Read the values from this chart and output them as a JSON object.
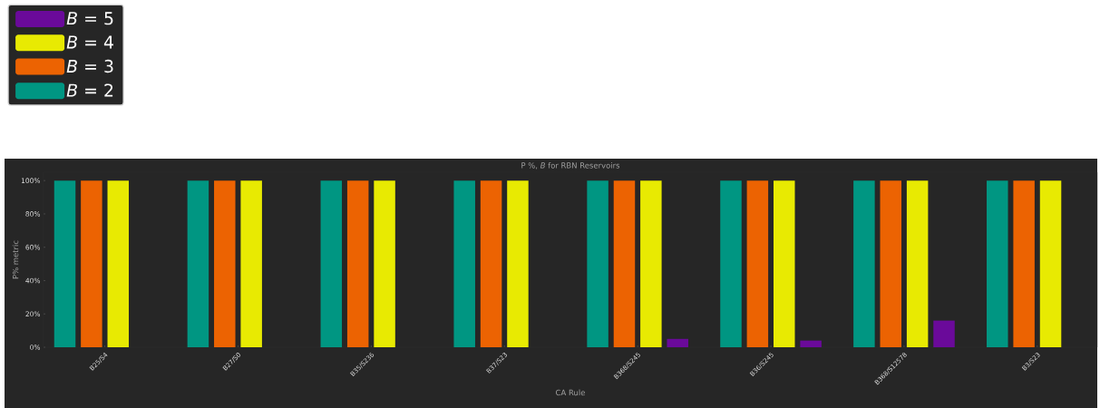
{
  "chart_data": {
    "type": "bar",
    "title": "P %, *B* for RBN Reservoirs",
    "xlabel": "CA Rule",
    "ylabel": "P% metric",
    "categories": [
      "B25/S4",
      "B27/S0",
      "B35/S236",
      "B37/S23",
      "B368/S245",
      "B36/S245",
      "B368/S12578",
      "B3/S23"
    ],
    "series": [
      {
        "name": "*B* = 2",
        "color": "#009682",
        "values": [
          100,
          100,
          100,
          100,
          100,
          100,
          100,
          100
        ]
      },
      {
        "name": "*B* = 3",
        "color": "#ec6302",
        "values": [
          100,
          100,
          100,
          100,
          100,
          100,
          100,
          100
        ]
      },
      {
        "name": "*B* = 4",
        "color": "#e8ea02",
        "values": [
          100,
          100,
          100,
          100,
          100,
          100,
          100,
          100
        ]
      },
      {
        "name": "*B* = 5",
        "color": "#6a0a9a",
        "values": [
          0,
          0,
          0,
          0,
          5,
          4,
          16,
          0
        ]
      }
    ],
    "ylim": [
      0,
      105
    ],
    "yticks": [
      {
        "value": 0,
        "label": "0%"
      },
      {
        "value": 20,
        "label": "20%"
      },
      {
        "value": 40,
        "label": "40%"
      },
      {
        "value": 60,
        "label": "60%"
      },
      {
        "value": 80,
        "label": "80%"
      },
      {
        "value": 100,
        "label": "100%"
      }
    ],
    "legend": "top left"
  }
}
